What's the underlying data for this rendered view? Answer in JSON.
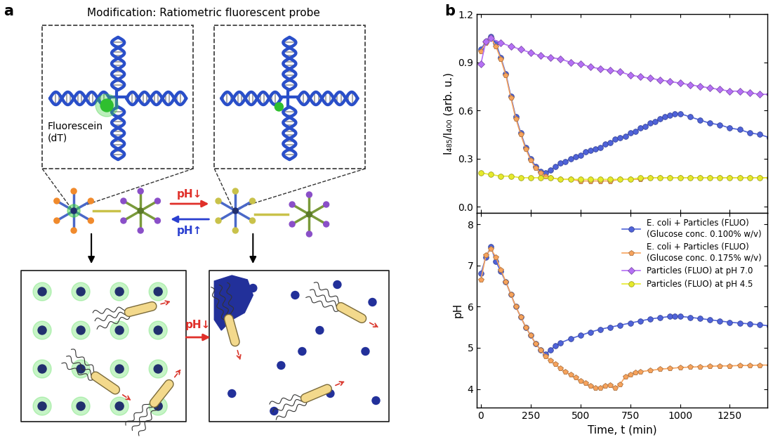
{
  "panel_a": {
    "label": "a",
    "title": "Modification: Ratiometric fluorescent probe",
    "fluorophore_label": "Fluorescein\n(dT)",
    "arrow_forward": "pH↓",
    "arrow_back": "pH↑",
    "arrow_bottom": "pH↓"
  },
  "panel_b": {
    "label": "b"
  },
  "chart_data": [
    {
      "type": "line",
      "y_label": "I₄₈₅/I₄₀₀ (arb. u.)",
      "tick_labels": "y",
      "xlim": [
        -20,
        1440
      ],
      "xticks": [
        0,
        250,
        500,
        750,
        1000,
        1250
      ],
      "ylim": [
        -0.04,
        1.2
      ],
      "yticks": [
        {
          "value": 0,
          "label": "0.0"
        },
        0.3,
        0.6,
        0.9,
        1.2
      ],
      "series": [
        {
          "name": "E. coli + Particles (FLUO)\n(Glucose conc. 0.100% w/v)",
          "color": "#4f63d9",
          "marker": "circle",
          "line_style": "solid",
          "x": [
            0,
            25,
            50,
            75,
            100,
            125,
            150,
            175,
            200,
            225,
            250,
            275,
            300,
            325,
            350,
            375,
            400,
            425,
            450,
            475,
            500,
            525,
            550,
            575,
            600,
            625,
            650,
            675,
            700,
            725,
            750,
            775,
            800,
            825,
            850,
            875,
            900,
            925,
            950,
            975,
            1000,
            1050,
            1100,
            1150,
            1200,
            1250,
            1300,
            1350,
            1400,
            1450
          ],
          "values": [
            0.98,
            1.03,
            1.06,
            1.02,
            0.93,
            0.83,
            0.69,
            0.56,
            0.46,
            0.37,
            0.3,
            0.25,
            0.22,
            0.21,
            0.23,
            0.25,
            0.27,
            0.28,
            0.3,
            0.31,
            0.32,
            0.34,
            0.35,
            0.36,
            0.37,
            0.39,
            0.4,
            0.42,
            0.43,
            0.44,
            0.46,
            0.47,
            0.49,
            0.5,
            0.52,
            0.53,
            0.55,
            0.56,
            0.57,
            0.58,
            0.58,
            0.56,
            0.54,
            0.52,
            0.51,
            0.49,
            0.48,
            0.46,
            0.45,
            0.43
          ]
        },
        {
          "name": "E. coli + Particles (FLUO)\n(Glucose conc. 0.175% w/v)",
          "color": "#f7a35c",
          "marker": "pentagon",
          "line_style": "solid",
          "x": [
            0,
            25,
            50,
            75,
            100,
            125,
            150,
            175,
            200,
            225,
            250,
            275,
            300,
            325,
            350,
            400,
            450,
            500,
            550,
            600,
            650,
            700,
            750,
            800,
            850,
            900,
            950,
            1000,
            1050,
            1100,
            1150,
            1200,
            1250,
            1300,
            1350,
            1400,
            1450
          ],
          "values": [
            0.97,
            1.02,
            1.05,
            1.0,
            0.92,
            0.82,
            0.68,
            0.55,
            0.45,
            0.36,
            0.29,
            0.24,
            0.21,
            0.19,
            0.18,
            0.17,
            0.17,
            0.16,
            0.16,
            0.16,
            0.16,
            0.17,
            0.17,
            0.17,
            0.18,
            0.18,
            0.18,
            0.18,
            0.18,
            0.18,
            0.18,
            0.18,
            0.18,
            0.18,
            0.18,
            0.18,
            0.18
          ]
        },
        {
          "name": "Particles (FLUO) at pH 7.0",
          "color": "#b570f5",
          "marker": "diamond",
          "line_style": "solid",
          "x": [
            0,
            25,
            50,
            100,
            150,
            200,
            250,
            300,
            350,
            400,
            450,
            500,
            550,
            600,
            650,
            700,
            750,
            800,
            850,
            900,
            950,
            1000,
            1050,
            1100,
            1150,
            1200,
            1250,
            1300,
            1350,
            1400,
            1450
          ],
          "values": [
            0.89,
            1.03,
            1.05,
            1.02,
            1.0,
            0.98,
            0.96,
            0.94,
            0.93,
            0.92,
            0.9,
            0.89,
            0.87,
            0.86,
            0.85,
            0.84,
            0.82,
            0.81,
            0.8,
            0.79,
            0.78,
            0.77,
            0.76,
            0.75,
            0.74,
            0.73,
            0.72,
            0.72,
            0.71,
            0.7,
            0.7
          ]
        },
        {
          "name": "Particles (FLUO) at pH 4.5",
          "color": "#e6ea2b",
          "marker": "circle",
          "line_style": "solid",
          "x": [
            0,
            50,
            100,
            150,
            200,
            250,
            300,
            350,
            400,
            450,
            500,
            550,
            600,
            650,
            700,
            750,
            800,
            850,
            900,
            950,
            1000,
            1050,
            1100,
            1150,
            1200,
            1250,
            1300,
            1350,
            1400,
            1450
          ],
          "values": [
            0.21,
            0.2,
            0.19,
            0.19,
            0.18,
            0.18,
            0.18,
            0.18,
            0.17,
            0.17,
            0.17,
            0.17,
            0.17,
            0.17,
            0.17,
            0.17,
            0.18,
            0.18,
            0.18,
            0.18,
            0.18,
            0.18,
            0.18,
            0.18,
            0.18,
            0.18,
            0.18,
            0.18,
            0.18,
            0.18
          ]
        }
      ]
    },
    {
      "type": "line",
      "x_label": "Time, t (min)",
      "y_label": "pH",
      "legend": "upper right",
      "xlim": [
        -20,
        1440
      ],
      "xticks": [
        0,
        250,
        500,
        750,
        1000,
        1250
      ],
      "ylim": [
        3.55,
        8.27
      ],
      "yticks": [
        4,
        5,
        6,
        7,
        8
      ],
      "series": [
        {
          "name": "E. coli + Particles (FLUO)\n(Glucose conc. 0.100% w/v)",
          "color": "#4f63d9",
          "marker": "circle",
          "line_style": "solid",
          "x": [
            0,
            25,
            50,
            75,
            100,
            125,
            150,
            175,
            200,
            225,
            250,
            275,
            300,
            325,
            350,
            375,
            400,
            450,
            500,
            550,
            600,
            650,
            700,
            750,
            800,
            850,
            900,
            950,
            975,
            1000,
            1050,
            1100,
            1150,
            1200,
            1250,
            1300,
            1350,
            1400,
            1450
          ],
          "values": [
            6.8,
            7.2,
            7.45,
            7.1,
            6.85,
            6.6,
            6.3,
            6.0,
            5.75,
            5.5,
            5.3,
            5.1,
            4.95,
            4.85,
            4.95,
            5.05,
            5.12,
            5.22,
            5.3,
            5.38,
            5.45,
            5.5,
            5.55,
            5.6,
            5.65,
            5.7,
            5.73,
            5.76,
            5.77,
            5.76,
            5.74,
            5.71,
            5.68,
            5.65,
            5.62,
            5.6,
            5.58,
            5.56,
            5.53
          ]
        },
        {
          "name": "E. coli + Particles (FLUO)\n(Glucose conc. 0.175% w/v)",
          "color": "#f7a35c",
          "marker": "pentagon",
          "line_style": "solid",
          "x": [
            0,
            25,
            50,
            75,
            100,
            125,
            150,
            175,
            200,
            225,
            250,
            275,
            300,
            325,
            350,
            375,
            400,
            425,
            450,
            475,
            500,
            525,
            550,
            575,
            600,
            625,
            650,
            675,
            700,
            725,
            750,
            775,
            800,
            850,
            900,
            950,
            1000,
            1050,
            1100,
            1150,
            1200,
            1250,
            1300,
            1350,
            1400,
            1450
          ],
          "values": [
            6.65,
            7.25,
            7.4,
            7.2,
            6.9,
            6.6,
            6.3,
            6.0,
            5.75,
            5.5,
            5.3,
            5.1,
            4.95,
            4.8,
            4.7,
            4.6,
            4.5,
            4.42,
            4.35,
            4.28,
            4.2,
            4.14,
            4.08,
            4.03,
            4.02,
            4.08,
            4.1,
            4.03,
            4.12,
            4.3,
            4.35,
            4.4,
            4.42,
            4.45,
            4.48,
            4.5,
            4.52,
            4.53,
            4.54,
            4.55,
            4.56,
            4.56,
            4.57,
            4.57,
            4.58,
            4.58
          ]
        }
      ]
    }
  ]
}
